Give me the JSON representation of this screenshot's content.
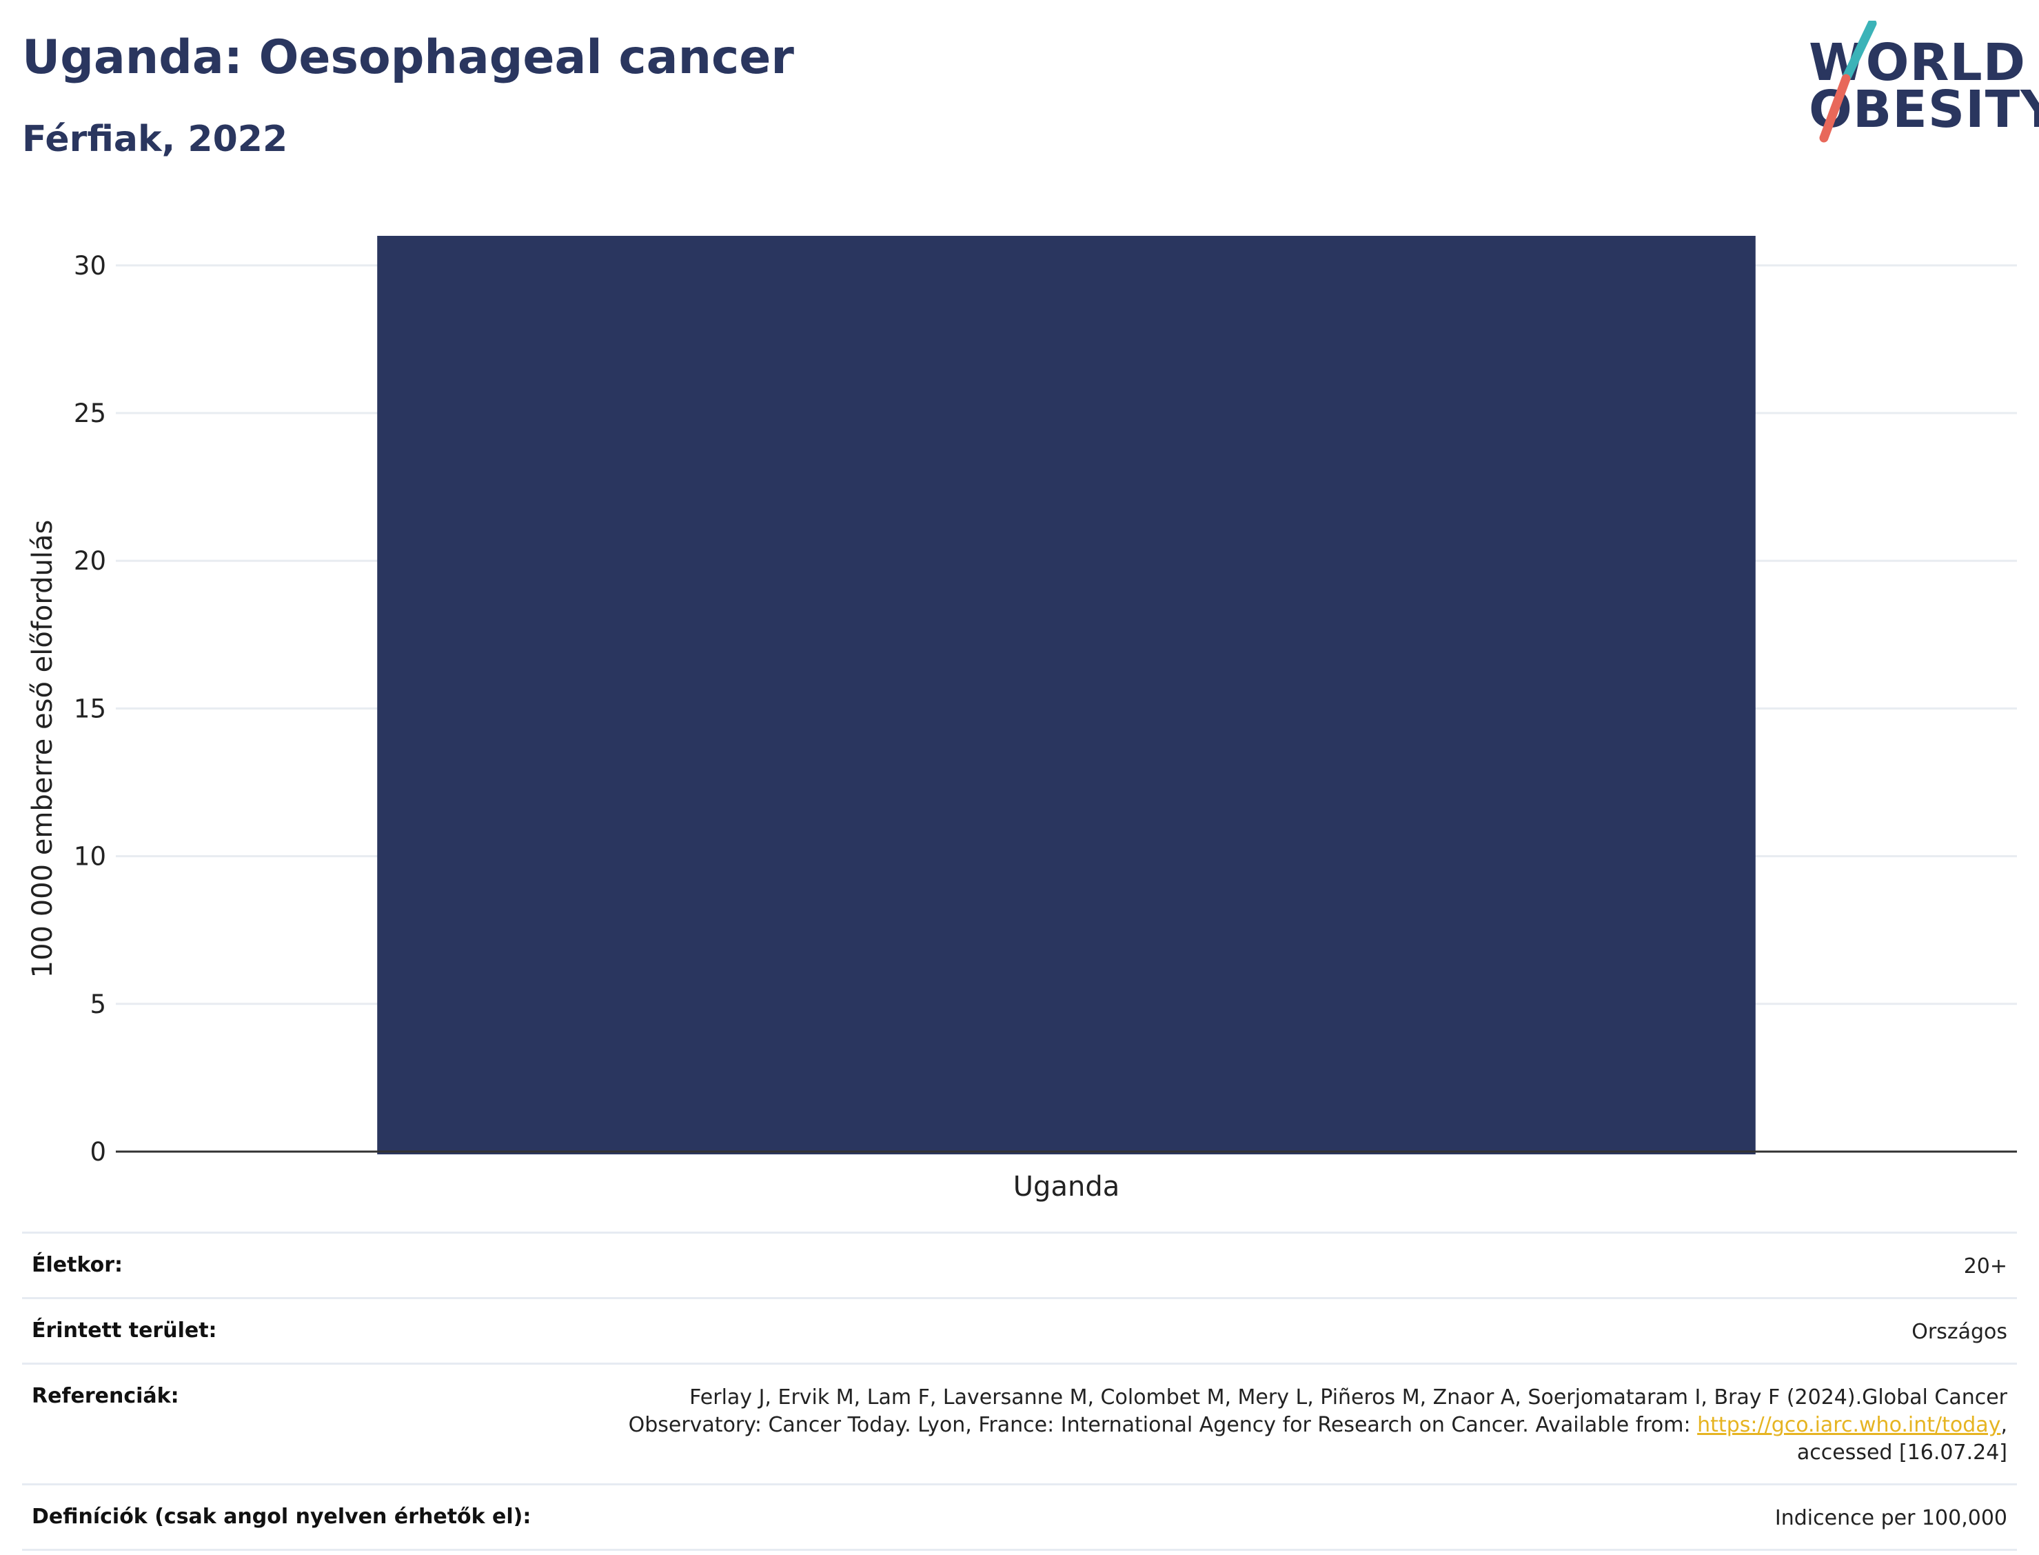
{
  "header": {
    "title": "Uganda: Oesophageal cancer",
    "subtitle": "Férfiak, 2022"
  },
  "logo": {
    "line1": "WORLD",
    "line2": "OBESITY",
    "text_color": "#2a365f",
    "accent_top": "#3bb3b8",
    "accent_bottom": "#e8685a"
  },
  "chart_data": {
    "type": "bar",
    "categories": [
      "Uganda"
    ],
    "values": [
      31
    ],
    "ylabel": "100 000 emberre eső előfordulás",
    "xlabel": "",
    "ylim": [
      0,
      31
    ],
    "yticks": [
      0,
      5,
      10,
      15,
      20,
      25,
      30
    ],
    "bar_color": "#2a365f",
    "grid": true
  },
  "meta": {
    "age_label": "Életkor:",
    "age_value": "20+",
    "area_label": "Érintett terület:",
    "area_value": "Országos",
    "ref_label": "Referenciák:",
    "ref_line1": "Ferlay J, Ervik M, Lam F, Laversanne M, Colombet M, Mery L, Piñeros M, Znaor A, Soerjomataram I, Bray F (2024).Global Cancer",
    "ref_line2": "Observatory: Cancer Today. Lyon, France: International Agency for Research on Cancer. Available from: ",
    "ref_link": "https://gco.iarc.who.int/today",
    "ref_line2_end": ",",
    "ref_line3": "accessed [16.07.24]",
    "def_label": "Definíciók (csak angol nyelven érhetők el):",
    "def_value": "Indicence per 100,000"
  }
}
